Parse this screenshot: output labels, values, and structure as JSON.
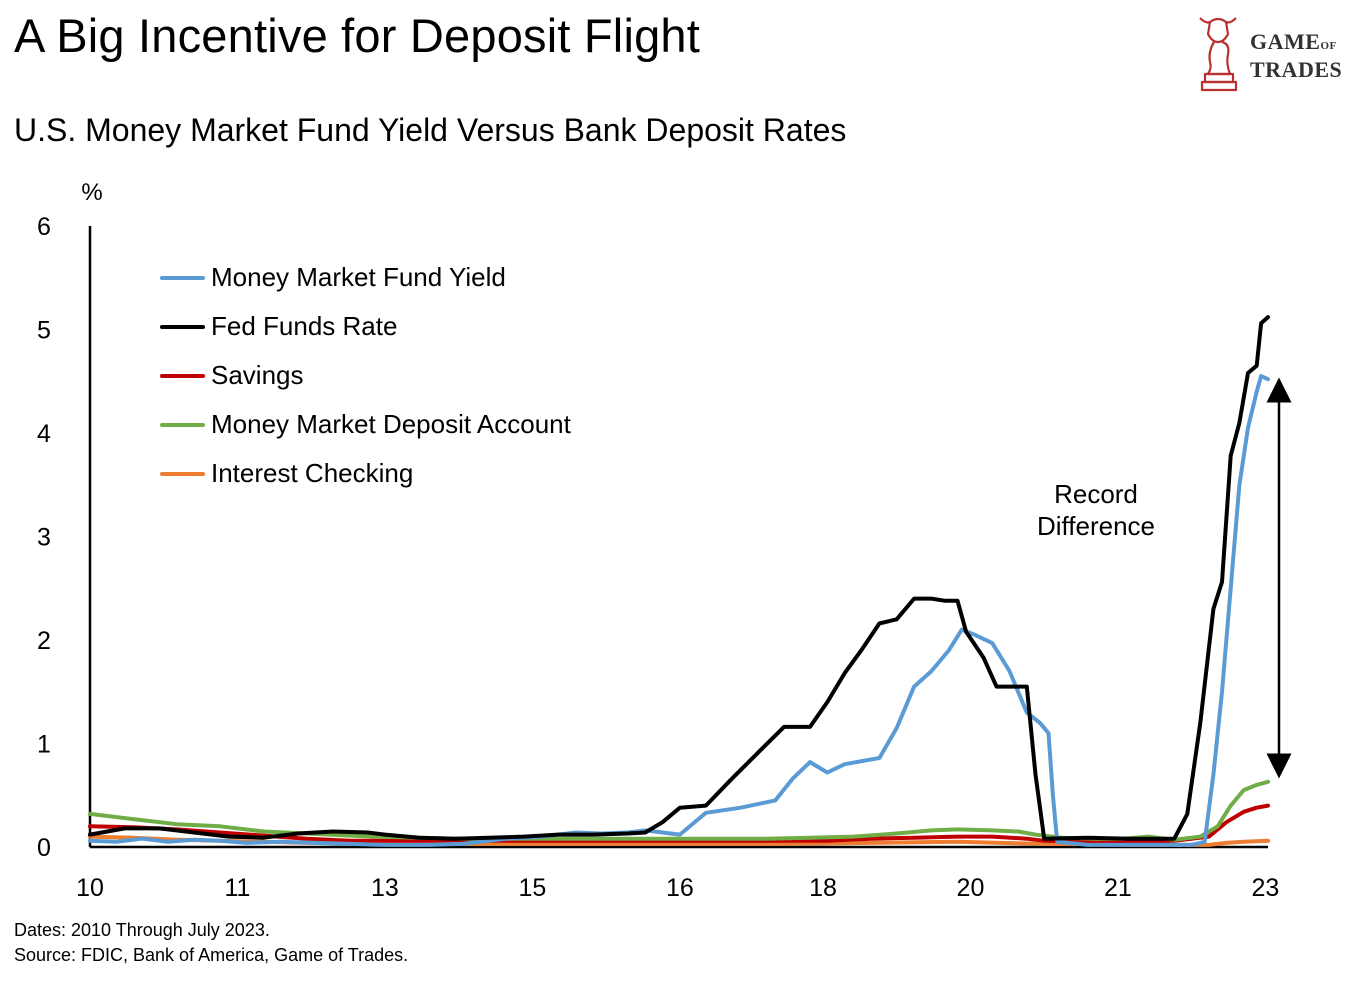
{
  "header": {
    "title": "A Big Incentive for Deposit Flight",
    "subtitle": "U.S. Money Market Fund Yield Versus Bank Deposit Rates"
  },
  "logo": {
    "line1": "GAME",
    "line1_small": "OF",
    "line2": "TRADES",
    "color": "#b8312f"
  },
  "footer": {
    "dates": "Dates: 2010 Through July 2023.",
    "source": "Source: FDIC, Bank of America, Game of Trades."
  },
  "annotation": {
    "line1": "Record",
    "line2": "Difference"
  },
  "chart_data": {
    "type": "line",
    "ylabel": "%",
    "ylim": [
      0,
      6
    ],
    "yticks": [
      "0",
      "1",
      "2",
      "3",
      "4",
      "5",
      "6"
    ],
    "xlim": [
      2010.0,
      2023.58
    ],
    "xtick_labels": [
      {
        "label": "10",
        "x": 2010.0
      },
      {
        "label": "11",
        "x": 2011.7
      },
      {
        "label": "13",
        "x": 2013.4
      },
      {
        "label": "15",
        "x": 2015.1
      },
      {
        "label": "16",
        "x": 2016.8
      },
      {
        "label": "18",
        "x": 2018.45
      },
      {
        "label": "20",
        "x": 2020.15
      },
      {
        "label": "21",
        "x": 2021.85
      },
      {
        "label": "23",
        "x": 2023.55
      }
    ],
    "legend_position": "top-left",
    "grid": false,
    "series": [
      {
        "name": "Money Market Fund Yield",
        "color": "#5b9bd5",
        "points": [
          [
            2010.0,
            0.06
          ],
          [
            2010.3,
            0.05
          ],
          [
            2010.6,
            0.08
          ],
          [
            2010.9,
            0.05
          ],
          [
            2011.2,
            0.07
          ],
          [
            2011.5,
            0.06
          ],
          [
            2011.8,
            0.04
          ],
          [
            2012.2,
            0.05
          ],
          [
            2012.6,
            0.04
          ],
          [
            2013.0,
            0.03
          ],
          [
            2013.4,
            0.02
          ],
          [
            2013.9,
            0.02
          ],
          [
            2014.3,
            0.03
          ],
          [
            2014.8,
            0.08
          ],
          [
            2015.2,
            0.1
          ],
          [
            2015.6,
            0.14
          ],
          [
            2015.9,
            0.13
          ],
          [
            2016.2,
            0.14
          ],
          [
            2016.4,
            0.16
          ],
          [
            2016.8,
            0.12
          ],
          [
            2017.1,
            0.33
          ],
          [
            2017.5,
            0.38
          ],
          [
            2017.9,
            0.45
          ],
          [
            2018.1,
            0.66
          ],
          [
            2018.3,
            0.82
          ],
          [
            2018.5,
            0.72
          ],
          [
            2018.7,
            0.8
          ],
          [
            2018.9,
            0.83
          ],
          [
            2019.1,
            0.86
          ],
          [
            2019.3,
            1.15
          ],
          [
            2019.5,
            1.55
          ],
          [
            2019.7,
            1.7
          ],
          [
            2019.9,
            1.9
          ],
          [
            2020.05,
            2.1
          ],
          [
            2020.2,
            2.05
          ],
          [
            2020.4,
            1.97
          ],
          [
            2020.6,
            1.7
          ],
          [
            2020.8,
            1.3
          ],
          [
            2020.95,
            1.2
          ],
          [
            2021.05,
            1.1
          ],
          [
            2021.1,
            0.5
          ],
          [
            2021.15,
            0.05
          ],
          [
            2021.5,
            0.02
          ],
          [
            2022.0,
            0.02
          ],
          [
            2022.4,
            0.02
          ],
          [
            2022.7,
            0.02
          ],
          [
            2022.85,
            0.05
          ],
          [
            2022.95,
            0.7
          ],
          [
            2023.05,
            1.5
          ],
          [
            2023.15,
            2.5
          ],
          [
            2023.25,
            3.5
          ],
          [
            2023.35,
            4.05
          ],
          [
            2023.45,
            4.4
          ],
          [
            2023.5,
            4.55
          ],
          [
            2023.58,
            4.52
          ]
        ]
      },
      {
        "name": "Fed Funds Rate",
        "color": "#000000",
        "points": [
          [
            2010.0,
            0.12
          ],
          [
            2010.4,
            0.18
          ],
          [
            2010.8,
            0.18
          ],
          [
            2011.2,
            0.14
          ],
          [
            2011.6,
            0.1
          ],
          [
            2012.0,
            0.09
          ],
          [
            2012.4,
            0.13
          ],
          [
            2012.8,
            0.15
          ],
          [
            2013.2,
            0.14
          ],
          [
            2013.4,
            0.12
          ],
          [
            2013.8,
            0.09
          ],
          [
            2014.2,
            0.08
          ],
          [
            2014.6,
            0.09
          ],
          [
            2015.0,
            0.1
          ],
          [
            2015.4,
            0.12
          ],
          [
            2015.8,
            0.12
          ],
          [
            2016.2,
            0.13
          ],
          [
            2016.4,
            0.14
          ],
          [
            2016.6,
            0.24
          ],
          [
            2016.8,
            0.38
          ],
          [
            2017.1,
            0.4
          ],
          [
            2017.4,
            0.66
          ],
          [
            2017.7,
            0.91
          ],
          [
            2018.0,
            1.16
          ],
          [
            2018.3,
            1.16
          ],
          [
            2018.5,
            1.4
          ],
          [
            2018.7,
            1.68
          ],
          [
            2018.9,
            1.91
          ],
          [
            2019.1,
            2.16
          ],
          [
            2019.3,
            2.2
          ],
          [
            2019.5,
            2.4
          ],
          [
            2019.7,
            2.4
          ],
          [
            2019.85,
            2.38
          ],
          [
            2020.0,
            2.38
          ],
          [
            2020.1,
            2.08
          ],
          [
            2020.3,
            1.83
          ],
          [
            2020.45,
            1.55
          ],
          [
            2020.65,
            1.55
          ],
          [
            2020.8,
            1.55
          ],
          [
            2020.9,
            0.7
          ],
          [
            2021.0,
            0.08
          ],
          [
            2021.5,
            0.09
          ],
          [
            2022.0,
            0.08
          ],
          [
            2022.5,
            0.08
          ],
          [
            2022.65,
            0.32
          ],
          [
            2022.8,
            1.2
          ],
          [
            2022.95,
            2.3
          ],
          [
            2023.05,
            2.56
          ],
          [
            2023.15,
            3.78
          ],
          [
            2023.25,
            4.1
          ],
          [
            2023.35,
            4.58
          ],
          [
            2023.45,
            4.65
          ],
          [
            2023.5,
            5.06
          ],
          [
            2023.58,
            5.12
          ]
        ]
      },
      {
        "name": "Savings",
        "color": "#c00000",
        "points": [
          [
            2010.0,
            0.2
          ],
          [
            2010.5,
            0.19
          ],
          [
            2011.0,
            0.17
          ],
          [
            2011.5,
            0.14
          ],
          [
            2012.0,
            0.11
          ],
          [
            2012.5,
            0.08
          ],
          [
            2013.0,
            0.06
          ],
          [
            2013.5,
            0.06
          ],
          [
            2014.0,
            0.06
          ],
          [
            2014.5,
            0.06
          ],
          [
            2015.0,
            0.06
          ],
          [
            2015.5,
            0.06
          ],
          [
            2016.0,
            0.06
          ],
          [
            2016.5,
            0.06
          ],
          [
            2017.0,
            0.06
          ],
          [
            2017.5,
            0.06
          ],
          [
            2018.0,
            0.06
          ],
          [
            2018.5,
            0.06
          ],
          [
            2019.0,
            0.08
          ],
          [
            2019.5,
            0.09
          ],
          [
            2020.0,
            0.1
          ],
          [
            2020.4,
            0.1
          ],
          [
            2020.8,
            0.08
          ],
          [
            2021.0,
            0.06
          ],
          [
            2021.5,
            0.05
          ],
          [
            2022.0,
            0.05
          ],
          [
            2022.5,
            0.06
          ],
          [
            2022.9,
            0.1
          ],
          [
            2023.1,
            0.24
          ],
          [
            2023.3,
            0.34
          ],
          [
            2023.45,
            0.38
          ],
          [
            2023.58,
            0.4
          ]
        ]
      },
      {
        "name": "Money Market Deposit Account",
        "color": "#70ad47",
        "points": [
          [
            2010.0,
            0.32
          ],
          [
            2010.5,
            0.27
          ],
          [
            2011.0,
            0.22
          ],
          [
            2011.5,
            0.2
          ],
          [
            2012.0,
            0.15
          ],
          [
            2012.5,
            0.13
          ],
          [
            2013.0,
            0.11
          ],
          [
            2013.3,
            0.1
          ],
          [
            2013.8,
            0.09
          ],
          [
            2014.3,
            0.08
          ],
          [
            2014.8,
            0.08
          ],
          [
            2015.3,
            0.08
          ],
          [
            2015.8,
            0.08
          ],
          [
            2016.3,
            0.08
          ],
          [
            2016.8,
            0.08
          ],
          [
            2017.3,
            0.08
          ],
          [
            2017.8,
            0.08
          ],
          [
            2018.3,
            0.09
          ],
          [
            2018.8,
            0.1
          ],
          [
            2019.3,
            0.13
          ],
          [
            2019.7,
            0.16
          ],
          [
            2020.0,
            0.17
          ],
          [
            2020.4,
            0.16
          ],
          [
            2020.7,
            0.15
          ],
          [
            2020.9,
            0.12
          ],
          [
            2021.2,
            0.09
          ],
          [
            2021.6,
            0.08
          ],
          [
            2021.9,
            0.08
          ],
          [
            2022.2,
            0.1
          ],
          [
            2022.5,
            0.07
          ],
          [
            2022.8,
            0.1
          ],
          [
            2023.0,
            0.2
          ],
          [
            2023.15,
            0.4
          ],
          [
            2023.3,
            0.55
          ],
          [
            2023.45,
            0.6
          ],
          [
            2023.58,
            0.63
          ]
        ]
      },
      {
        "name": "Interest Checking",
        "color": "#ed7d31",
        "points": [
          [
            2010.0,
            0.1
          ],
          [
            2010.5,
            0.09
          ],
          [
            2011.0,
            0.07
          ],
          [
            2011.5,
            0.06
          ],
          [
            2012.0,
            0.05
          ],
          [
            2012.5,
            0.04
          ],
          [
            2013.0,
            0.04
          ],
          [
            2013.5,
            0.03
          ],
          [
            2014.0,
            0.03
          ],
          [
            2015.0,
            0.03
          ],
          [
            2016.0,
            0.03
          ],
          [
            2017.0,
            0.03
          ],
          [
            2018.0,
            0.03
          ],
          [
            2019.0,
            0.04
          ],
          [
            2020.0,
            0.05
          ],
          [
            2020.5,
            0.04
          ],
          [
            2021.0,
            0.03
          ],
          [
            2021.5,
            0.03
          ],
          [
            2022.0,
            0.02
          ],
          [
            2022.5,
            0.02
          ],
          [
            2022.9,
            0.02
          ],
          [
            2023.1,
            0.04
          ],
          [
            2023.3,
            0.05
          ],
          [
            2023.58,
            0.06
          ]
        ]
      }
    ]
  }
}
